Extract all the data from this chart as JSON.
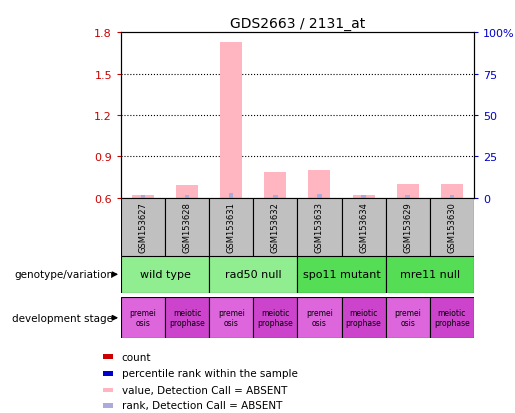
{
  "title": "GDS2663 / 2131_at",
  "samples": [
    "GSM153627",
    "GSM153628",
    "GSM153631",
    "GSM153632",
    "GSM153633",
    "GSM153634",
    "GSM153629",
    "GSM153630"
  ],
  "bar_values_pink": [
    0.62,
    0.69,
    1.73,
    0.79,
    0.8,
    0.62,
    0.7,
    0.7
  ],
  "bar_values_blue": [
    0.623,
    0.623,
    0.632,
    0.623,
    0.625,
    0.621,
    0.622,
    0.622
  ],
  "ylim_left": [
    0.6,
    1.8
  ],
  "ylim_right": [
    0,
    100
  ],
  "yticks_left": [
    0.6,
    0.9,
    1.2,
    1.5,
    1.8
  ],
  "ytick_labels_left": [
    "0.6",
    "0.9",
    "1.2",
    "1.5",
    "1.8"
  ],
  "yticks_right": [
    0,
    25,
    50,
    75,
    100
  ],
  "ytick_labels_right": [
    "0",
    "25",
    "50",
    "75",
    "100%"
  ],
  "pink_color": "#FFB6C1",
  "light_blue_color": "#AAAADD",
  "genotype_groups": [
    {
      "label": "wild type",
      "start": 0,
      "end": 2,
      "color": "#90EE90"
    },
    {
      "label": "rad50 null",
      "start": 2,
      "end": 4,
      "color": "#90EE90"
    },
    {
      "label": "spo11 mutant",
      "start": 4,
      "end": 6,
      "color": "#55DD55"
    },
    {
      "label": "mre11 null",
      "start": 6,
      "end": 8,
      "color": "#55DD55"
    }
  ],
  "dev_stage_groups": [
    {
      "label": "premei\nosis",
      "start": 0,
      "end": 1,
      "color": "#DD66DD"
    },
    {
      "label": "meiotic\nprophase",
      "start": 1,
      "end": 2,
      "color": "#CC44CC"
    },
    {
      "label": "premei\nosis",
      "start": 2,
      "end": 3,
      "color": "#DD66DD"
    },
    {
      "label": "meiotic\nprophase",
      "start": 3,
      "end": 4,
      "color": "#CC44CC"
    },
    {
      "label": "premei\nosis",
      "start": 4,
      "end": 5,
      "color": "#DD66DD"
    },
    {
      "label": "meiotic\nprophase",
      "start": 5,
      "end": 6,
      "color": "#CC44CC"
    },
    {
      "label": "premei\nosis",
      "start": 6,
      "end": 7,
      "color": "#DD66DD"
    },
    {
      "label": "meiotic\nprophase",
      "start": 7,
      "end": 8,
      "color": "#CC44CC"
    }
  ],
  "legend_items": [
    {
      "color": "#CC0000",
      "label": "count"
    },
    {
      "color": "#0000CC",
      "label": "percentile rank within the sample"
    },
    {
      "color": "#FFB6C1",
      "label": "value, Detection Call = ABSENT"
    },
    {
      "color": "#AAAADD",
      "label": "rank, Detection Call = ABSENT"
    }
  ],
  "sample_bg_color": "#C0C0C0",
  "left_label_color": "#CC0000",
  "right_label_color": "#0000CC",
  "geno_label": "genotype/variation",
  "dev_label": "development stage"
}
